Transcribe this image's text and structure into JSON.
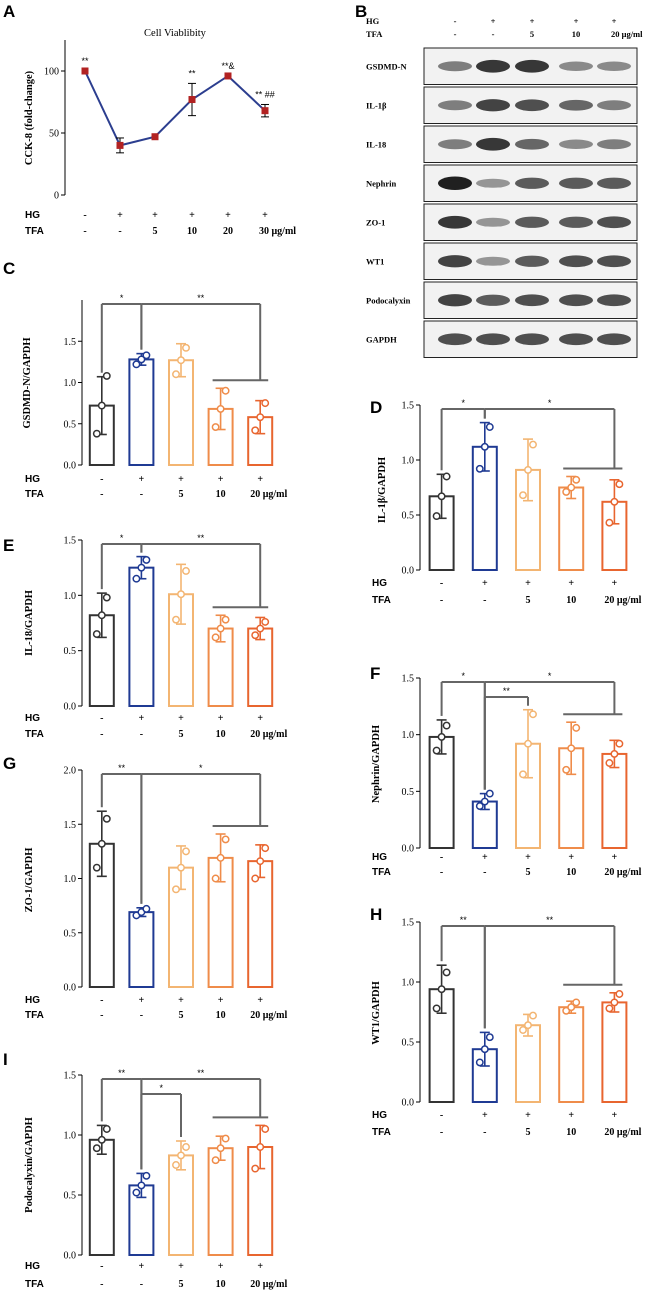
{
  "figure": {
    "group_labels": [
      "HG",
      "TFA"
    ],
    "hg_row": [
      "-",
      "+",
      "+",
      "+",
      "+"
    ],
    "tfa_row": [
      "-",
      "-",
      "5",
      "10",
      "20 μg/ml"
    ],
    "colors": {
      "control": "#333333",
      "hg": "#1f3a93",
      "tfa5": "#f3b572",
      "tfa10": "#ef8c4a",
      "tfa20": "#e8652f",
      "bracket": "#666666",
      "line": "#2c3e8f",
      "marker": "#b22222"
    }
  },
  "chart_data": [
    {
      "id": "A",
      "type": "line",
      "title": "Cell Viablibity",
      "ylabel": "CCK-8 (fold-change)",
      "ylim": [
        0,
        125
      ],
      "yticks": [
        0,
        50,
        100
      ],
      "hg_row": [
        "-",
        "+",
        "+",
        "+",
        "+",
        "+"
      ],
      "tfa_row": [
        "-",
        "-",
        "5",
        "10",
        "20",
        "30 μg/ml"
      ],
      "values": [
        100,
        40,
        47,
        77,
        96,
        68
      ],
      "errors": [
        0,
        6,
        0,
        13,
        0,
        5
      ],
      "annotations": [
        "**",
        "",
        "",
        "**",
        "**&",
        "** ##"
      ]
    },
    {
      "id": "C",
      "type": "bar",
      "ylabel": "GSDMD-N/GAPDH",
      "ylim": [
        0,
        2.0
      ],
      "yticks": [
        0,
        0.5,
        1.0,
        1.5
      ],
      "means": [
        0.72,
        1.28,
        1.27,
        0.68,
        0.58
      ],
      "errors": [
        0.35,
        0.07,
        0.2,
        0.25,
        0.2
      ],
      "points": [
        [
          0.38,
          0.72,
          1.08
        ],
        [
          1.22,
          1.28,
          1.33
        ],
        [
          1.1,
          1.27,
          1.42
        ],
        [
          0.46,
          0.68,
          0.9
        ],
        [
          0.42,
          0.58,
          0.75
        ]
      ],
      "brackets": [
        {
          "from": 0,
          "to": 1,
          "label": "*"
        },
        {
          "from": 1,
          "to": 4,
          "label": "**",
          "sub": true
        }
      ]
    },
    {
      "id": "D",
      "type": "bar",
      "ylabel": "IL-1β/GAPDH",
      "ylim": [
        0,
        1.5
      ],
      "yticks": [
        0,
        0.5,
        1.0,
        1.5
      ],
      "means": [
        0.67,
        1.12,
        0.91,
        0.75,
        0.62
      ],
      "errors": [
        0.2,
        0.22,
        0.28,
        0.1,
        0.2
      ],
      "points": [
        [
          0.49,
          0.67,
          0.85
        ],
        [
          0.92,
          1.12,
          1.3
        ],
        [
          0.68,
          0.91,
          1.14
        ],
        [
          0.71,
          0.75,
          0.82
        ],
        [
          0.43,
          0.62,
          0.78
        ]
      ],
      "brackets": [
        {
          "from": 0,
          "to": 1,
          "label": "*"
        },
        {
          "from": 1,
          "to": 4,
          "label": "*",
          "sub": true
        }
      ]
    },
    {
      "id": "E",
      "type": "bar",
      "ylabel": "IL-18/GAPDH",
      "ylim": [
        0,
        1.5
      ],
      "yticks": [
        0,
        0.5,
        1.0,
        1.5
      ],
      "means": [
        0.82,
        1.25,
        1.01,
        0.7,
        0.7
      ],
      "errors": [
        0.2,
        0.1,
        0.27,
        0.12,
        0.1
      ],
      "points": [
        [
          0.65,
          0.82,
          0.98
        ],
        [
          1.15,
          1.25,
          1.32
        ],
        [
          0.78,
          1.01,
          1.22
        ],
        [
          0.62,
          0.7,
          0.78
        ],
        [
          0.64,
          0.7,
          0.76
        ]
      ],
      "brackets": [
        {
          "from": 0,
          "to": 1,
          "label": "*"
        },
        {
          "from": 1,
          "to": 4,
          "label": "**",
          "sub": true
        }
      ]
    },
    {
      "id": "F",
      "type": "bar",
      "ylabel": "Nephrin/GAPDH",
      "ylim": [
        0,
        1.5
      ],
      "yticks": [
        0,
        0.5,
        1.0,
        1.5
      ],
      "means": [
        0.98,
        0.41,
        0.92,
        0.88,
        0.83
      ],
      "errors": [
        0.15,
        0.07,
        0.3,
        0.23,
        0.12
      ],
      "points": [
        [
          0.86,
          0.98,
          1.08
        ],
        [
          0.37,
          0.41,
          0.48
        ],
        [
          0.65,
          0.92,
          1.18
        ],
        [
          0.69,
          0.88,
          1.06
        ],
        [
          0.75,
          0.83,
          0.92
        ]
      ],
      "brackets": [
        {
          "from": 0,
          "to": 1,
          "label": "*"
        },
        {
          "from": 1,
          "to": 2,
          "label": "**"
        },
        {
          "from": 1,
          "to": 4,
          "label": "*",
          "sub": true
        }
      ]
    },
    {
      "id": "G",
      "type": "bar",
      "ylabel": "ZO-1/GAPDH",
      "ylim": [
        0,
        2.0
      ],
      "yticks": [
        0,
        0.5,
        1.0,
        1.5,
        2.0
      ],
      "means": [
        1.32,
        0.69,
        1.1,
        1.19,
        1.16
      ],
      "errors": [
        0.3,
        0.04,
        0.2,
        0.22,
        0.15
      ],
      "points": [
        [
          1.1,
          1.32,
          1.55
        ],
        [
          0.66,
          0.69,
          0.72
        ],
        [
          0.9,
          1.1,
          1.25
        ],
        [
          1.0,
          1.19,
          1.36
        ],
        [
          1.0,
          1.16,
          1.28
        ]
      ],
      "brackets": [
        {
          "from": 0,
          "to": 1,
          "label": "**"
        },
        {
          "from": 1,
          "to": 4,
          "label": "*",
          "sub": true
        }
      ]
    },
    {
      "id": "H",
      "type": "bar",
      "ylabel": "WT1/GAPDH",
      "ylim": [
        0,
        1.5
      ],
      "yticks": [
        0,
        0.5,
        1.0,
        1.5
      ],
      "means": [
        0.94,
        0.44,
        0.64,
        0.79,
        0.83
      ],
      "errors": [
        0.2,
        0.14,
        0.09,
        0.05,
        0.08
      ],
      "points": [
        [
          0.78,
          0.94,
          1.08
        ],
        [
          0.33,
          0.44,
          0.54
        ],
        [
          0.6,
          0.64,
          0.72
        ],
        [
          0.76,
          0.79,
          0.83
        ],
        [
          0.78,
          0.83,
          0.9
        ]
      ],
      "brackets": [
        {
          "from": 0,
          "to": 1,
          "label": "**"
        },
        {
          "from": 1,
          "to": 4,
          "label": "**",
          "sub": true
        }
      ]
    },
    {
      "id": "I",
      "type": "bar",
      "ylabel": "Podocalyxin/GAPDH",
      "ylim": [
        0,
        1.5
      ],
      "yticks": [
        0,
        0.5,
        1.0,
        1.5
      ],
      "means": [
        0.96,
        0.58,
        0.83,
        0.89,
        0.9
      ],
      "errors": [
        0.12,
        0.1,
        0.12,
        0.1,
        0.18
      ],
      "points": [
        [
          0.89,
          0.96,
          1.05
        ],
        [
          0.52,
          0.58,
          0.66
        ],
        [
          0.75,
          0.83,
          0.9
        ],
        [
          0.79,
          0.89,
          0.97
        ],
        [
          0.72,
          0.9,
          1.05
        ]
      ],
      "brackets": [
        {
          "from": 0,
          "to": 1,
          "label": "**"
        },
        {
          "from": 1,
          "to": 2,
          "label": "*"
        },
        {
          "from": 1,
          "to": 4,
          "label": "**",
          "sub": true
        }
      ]
    }
  ],
  "western_blot": {
    "id": "B",
    "header_labels": [
      "HG",
      "TFA"
    ],
    "hg_row": [
      "-",
      "+",
      "+",
      "+",
      "+"
    ],
    "tfa_row": [
      "-",
      "-",
      "5",
      "10",
      "20 μg/ml"
    ],
    "rows": [
      {
        "label": "GSDMD-N",
        "intensity": [
          0.55,
          0.85,
          0.85,
          0.5,
          0.5
        ]
      },
      {
        "label": "IL-1β",
        "intensity": [
          0.55,
          0.8,
          0.75,
          0.65,
          0.55
        ]
      },
      {
        "label": "IL-18",
        "intensity": [
          0.55,
          0.85,
          0.65,
          0.5,
          0.55
        ]
      },
      {
        "label": "Nephrin",
        "intensity": [
          0.95,
          0.45,
          0.7,
          0.7,
          0.7
        ]
      },
      {
        "label": "ZO-1",
        "intensity": [
          0.85,
          0.45,
          0.7,
          0.7,
          0.75
        ]
      },
      {
        "label": "WT1",
        "intensity": [
          0.8,
          0.45,
          0.7,
          0.75,
          0.75
        ]
      },
      {
        "label": "Podocalyxin",
        "intensity": [
          0.8,
          0.7,
          0.75,
          0.75,
          0.75
        ]
      },
      {
        "label": "GAPDH",
        "intensity": [
          0.75,
          0.75,
          0.75,
          0.75,
          0.75
        ]
      }
    ]
  }
}
